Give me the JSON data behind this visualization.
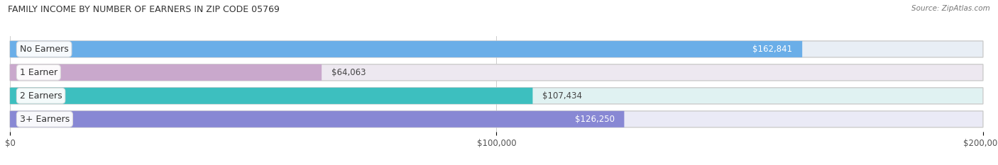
{
  "title": "FAMILY INCOME BY NUMBER OF EARNERS IN ZIP CODE 05769",
  "source": "Source: ZipAtlas.com",
  "categories": [
    "No Earners",
    "1 Earner",
    "2 Earners",
    "3+ Earners"
  ],
  "values": [
    162841,
    64063,
    107434,
    126250
  ],
  "bar_colors": [
    "#6aaee8",
    "#c9a8cc",
    "#3dbfbf",
    "#8888d4"
  ],
  "bar_bg_colors": [
    "#e8eef5",
    "#ede8f0",
    "#e0f2f2",
    "#eaeaf6"
  ],
  "value_labels": [
    "$162,841",
    "$64,063",
    "$107,434",
    "$126,250"
  ],
  "value_label_white": [
    true,
    false,
    false,
    true
  ],
  "xlim": [
    0,
    200000
  ],
  "xticks": [
    0,
    100000,
    200000
  ],
  "xtick_labels": [
    "$0",
    "$100,000",
    "$200,000"
  ],
  "figsize": [
    14.06,
    2.33
  ],
  "dpi": 100,
  "bg_color": "#ffffff"
}
